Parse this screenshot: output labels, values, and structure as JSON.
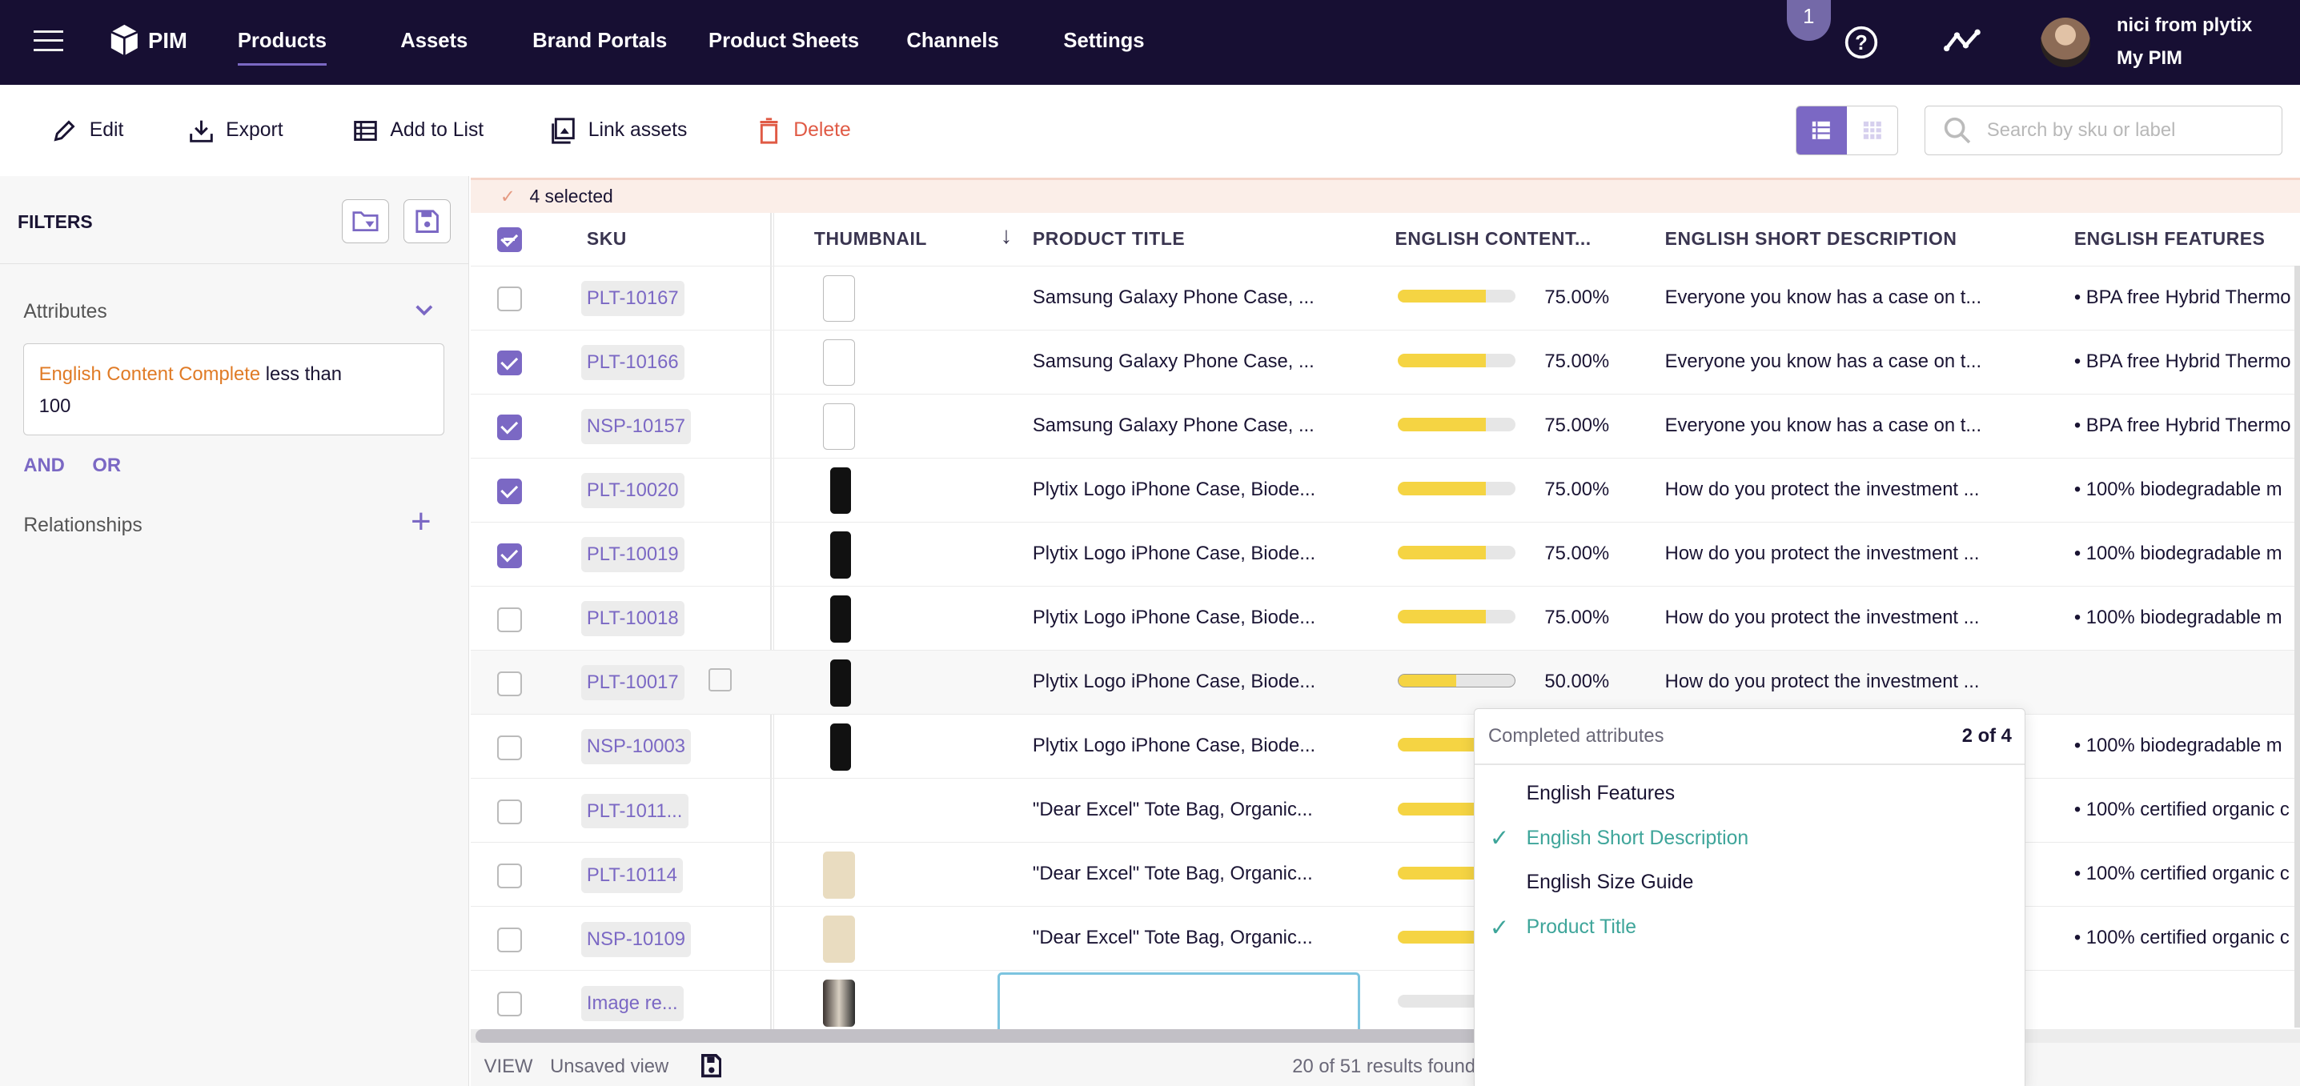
{
  "topbar": {
    "logo": "PIM",
    "nav": [
      "Products",
      "Assets",
      "Brand Portals",
      "Product Sheets",
      "Channels",
      "Settings"
    ],
    "notification_count": "1",
    "user_name": "nici from plytix",
    "account": "My PIM"
  },
  "toolbar": {
    "edit": "Edit",
    "export": "Export",
    "add_to_list": "Add to List",
    "link_assets": "Link assets",
    "delete": "Delete",
    "search_placeholder": "Search by sku or label"
  },
  "sidebar": {
    "title": "FILTERS",
    "attributes_label": "Attributes",
    "filter_attr": "English Content Complete",
    "filter_op": "less than",
    "filter_value": "100",
    "and": "AND",
    "or": "OR",
    "relationships": "Relationships"
  },
  "selection": {
    "text": "4 selected"
  },
  "columns": {
    "sku": "SKU",
    "thumbnail": "THUMBNAIL",
    "title": "PRODUCT TITLE",
    "content": "ENGLISH CONTENT...",
    "short_desc": "ENGLISH SHORT DESCRIPTION",
    "features": "ENGLISH FEATURES"
  },
  "rows": [
    {
      "sku": "PLT-10167",
      "checked": false,
      "thumb": "case-white",
      "title": "Samsung Galaxy Phone Case, ...",
      "pct": 75,
      "pct_label": "75.00%",
      "desc": "Everyone you know has a case on t...",
      "features": "• BPA free Hybrid Thermo"
    },
    {
      "sku": "PLT-10166",
      "checked": true,
      "thumb": "case-white",
      "title": "Samsung Galaxy Phone Case, ...",
      "pct": 75,
      "pct_label": "75.00%",
      "desc": "Everyone you know has a case on t...",
      "features": "• BPA free Hybrid Thermo"
    },
    {
      "sku": "NSP-10157",
      "checked": true,
      "thumb": "case-white",
      "title": "Samsung Galaxy Phone Case, ...",
      "pct": 75,
      "pct_label": "75.00%",
      "desc": "Everyone you know has a case on t...",
      "features": "• BPA free Hybrid Thermo"
    },
    {
      "sku": "PLT-10020",
      "checked": true,
      "thumb": "case-black",
      "title": "Plytix Logo iPhone Case, Biode...",
      "pct": 75,
      "pct_label": "75.00%",
      "desc": "How do you protect the investment ...",
      "features": "• 100% biodegradable m"
    },
    {
      "sku": "PLT-10019",
      "checked": true,
      "thumb": "case-black",
      "title": "Plytix Logo iPhone Case, Biode...",
      "pct": 75,
      "pct_label": "75.00%",
      "desc": "How do you protect the investment ...",
      "features": "• 100% biodegradable m"
    },
    {
      "sku": "PLT-10018",
      "checked": false,
      "thumb": "case-black",
      "title": "Plytix Logo iPhone Case, Biode...",
      "pct": 75,
      "pct_label": "75.00%",
      "desc": "How do you protect the investment ...",
      "features": "• 100% biodegradable m"
    },
    {
      "sku": "PLT-10017",
      "checked": false,
      "thumb": "case-black",
      "title": "Plytix Logo iPhone Case, Biode...",
      "pct": 50,
      "pct_label": "50.00%",
      "desc": "How do you protect the investment ...",
      "features": ""
    },
    {
      "sku": "NSP-10003",
      "checked": false,
      "thumb": "case-black",
      "title": "Plytix Logo iPhone Case, Biode...",
      "pct": 75,
      "pct_label": "",
      "desc": "",
      "features": "• 100% biodegradable m"
    },
    {
      "sku": "PLT-1011...",
      "checked": false,
      "thumb": "",
      "title": "\"Dear Excel\" Tote Bag, Organic...",
      "pct": 75,
      "pct_label": "",
      "desc": "",
      "features": "• 100% certified organic c"
    },
    {
      "sku": "PLT-10114",
      "checked": false,
      "thumb": "tote",
      "title": "\"Dear Excel\" Tote Bag, Organic...",
      "pct": 75,
      "pct_label": "",
      "desc": "",
      "features": "• 100% certified organic c"
    },
    {
      "sku": "NSP-10109",
      "checked": false,
      "thumb": "tote",
      "title": "\"Dear Excel\" Tote Bag, Organic...",
      "pct": 75,
      "pct_label": "",
      "desc": "",
      "features": "• 100% certified organic c"
    },
    {
      "sku": "Image re...",
      "checked": false,
      "thumb": "photo",
      "title": "",
      "pct": 0,
      "pct_label": "",
      "desc": "",
      "features": ""
    }
  ],
  "popover": {
    "title": "Completed attributes",
    "count": "2 of 4",
    "items": [
      {
        "label": "English Features",
        "done": false
      },
      {
        "label": "English Short Description",
        "done": true
      },
      {
        "label": "English Size Guide",
        "done": false
      },
      {
        "label": "Product Title",
        "done": true
      }
    ]
  },
  "footer": {
    "view_label": "VIEW",
    "view_name": "Unsaved view",
    "results": "20 of 51 results found"
  },
  "colors": {
    "brand": "#170f33",
    "accent": "#7b68c4",
    "progress": "#f5d443",
    "done": "#3ea59a",
    "delete": "#e05a45"
  }
}
